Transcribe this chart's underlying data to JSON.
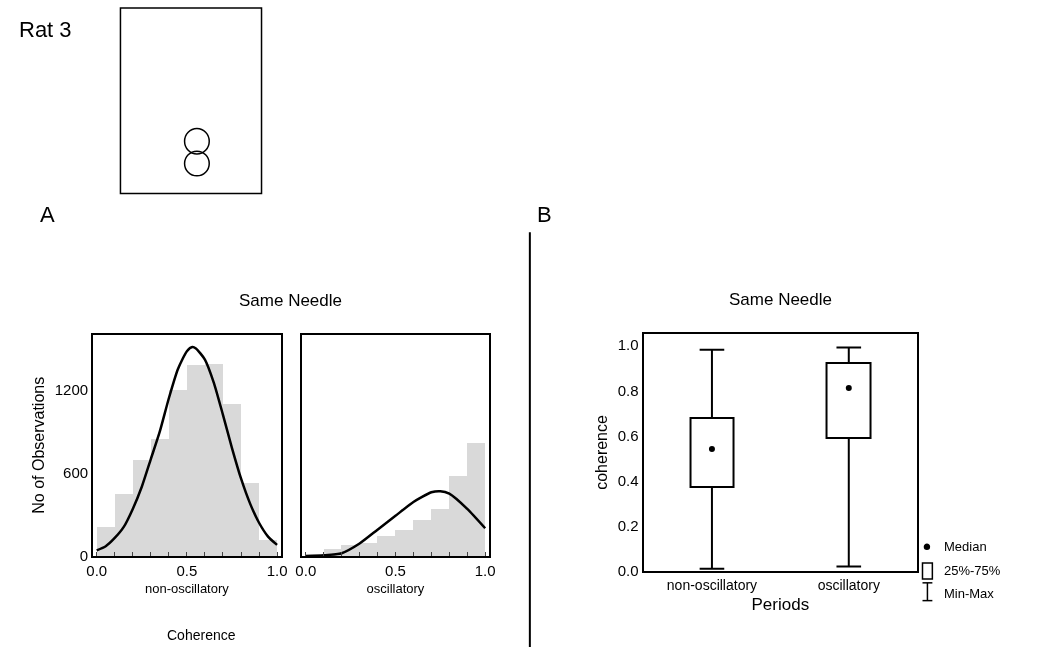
{
  "chart_data": [
    {
      "type": "histogram",
      "title": "Same Needle",
      "ylabel": "No of Observations",
      "xlabel": "non-oscillatory",
      "annotations": [
        "Rat 3",
        "A",
        "Coherence"
      ],
      "bins": [
        0,
        0.1,
        0.2,
        0.3,
        0.4,
        0.5,
        0.6,
        0.7,
        0.8,
        0.9,
        1.0
      ],
      "values": [
        210,
        450,
        700,
        850,
        1200,
        1380,
        1390,
        1100,
        530,
        120
      ],
      "color": "#d9d9d9",
      "series": [
        {
          "type": "line",
          "color": "#000000",
          "x": [
            0,
            0.05,
            0.1,
            0.15,
            0.2,
            0.25,
            0.3,
            0.35,
            0.4,
            0.45,
            0.5,
            0.53,
            0.55,
            0.6,
            0.65,
            0.7,
            0.75,
            0.8,
            0.85,
            0.9,
            0.95,
            1.0
          ],
          "values": [
            40,
            70,
            130,
            210,
            340,
            500,
            700,
            900,
            1140,
            1350,
            1480,
            1510,
            1500,
            1420,
            1250,
            1020,
            780,
            560,
            380,
            240,
            140,
            80
          ]
        }
      ],
      "xlim": [
        -0.02,
        1.02
      ],
      "xticks": [
        {
          "value": 0,
          "label": "0.0"
        },
        {
          "value": 0.1,
          "label": null
        },
        {
          "value": 0.2,
          "label": null
        },
        {
          "value": 0.3,
          "label": null
        },
        {
          "value": 0.4,
          "label": null
        },
        {
          "value": 0.5,
          "label": "0.5"
        },
        {
          "value": 0.6,
          "label": null
        },
        {
          "value": 0.7,
          "label": null
        },
        {
          "value": 0.8,
          "label": null
        },
        {
          "value": 0.9,
          "label": null
        },
        {
          "value": 1,
          "label": "1.0"
        }
      ],
      "ylim": [
        0,
        1600
      ],
      "yticks": [
        0,
        600,
        1200
      ]
    },
    {
      "type": "histogram",
      "xlabel": "oscillatory",
      "bins": [
        0.1,
        0.2,
        0.3,
        0.4,
        0.5,
        0.6,
        0.7,
        0.8,
        0.9,
        1.0
      ],
      "values": [
        50,
        80,
        100,
        145,
        190,
        265,
        340,
        580,
        820
      ],
      "color": "#d9d9d9",
      "series": [
        {
          "type": "line",
          "color": "#000000",
          "x": [
            0,
            0.1,
            0.2,
            0.3,
            0.4,
            0.5,
            0.6,
            0.7,
            0.75,
            0.8,
            0.9,
            1.0
          ],
          "values": [
            0,
            5,
            20,
            90,
            190,
            290,
            390,
            460,
            468,
            450,
            340,
            200
          ]
        }
      ],
      "xlim": [
        -0.02,
        1.02
      ],
      "xticks": [
        {
          "value": 0,
          "label": "0.0"
        },
        {
          "value": 0.1,
          "label": null
        },
        {
          "value": 0.2,
          "label": null
        },
        {
          "value": 0.3,
          "label": null
        },
        {
          "value": 0.4,
          "label": null
        },
        {
          "value": 0.5,
          "label": "0.5"
        },
        {
          "value": 0.6,
          "label": null
        },
        {
          "value": 0.7,
          "label": null
        },
        {
          "value": 0.8,
          "label": null
        },
        {
          "value": 0.9,
          "label": null
        },
        {
          "value": 1,
          "label": "1.0"
        }
      ],
      "ylim": [
        0,
        1600
      ],
      "tick_labels": "x"
    },
    {
      "type": "box",
      "title": "Same Needle",
      "xlabel": "Periods",
      "ylabel": "coherence",
      "annotations": [
        "B",
        "Median",
        "25%-75%",
        "Min-Max"
      ],
      "categories": [
        "non-oscillatory",
        "oscillatory"
      ],
      "boxes": [
        {
          "low": 0.01,
          "q1": 0.37,
          "median": 0.54,
          "q3": 0.68,
          "high": 0.98
        },
        {
          "low": 0.02,
          "q1": 0.59,
          "median": 0.81,
          "q3": 0.92,
          "high": 0.99
        }
      ],
      "ylim": [
        0,
        1.05
      ],
      "yticks": [
        {
          "value": 0,
          "label": "0.0"
        },
        {
          "value": 0.2,
          "label": "0.2"
        },
        {
          "value": 0.4,
          "label": "0.4"
        },
        {
          "value": 0.6,
          "label": "0.6"
        },
        {
          "value": 0.8,
          "label": "0.8"
        },
        {
          "value": 1.0,
          "label": "1.0"
        }
      ],
      "color": "#000000"
    }
  ]
}
